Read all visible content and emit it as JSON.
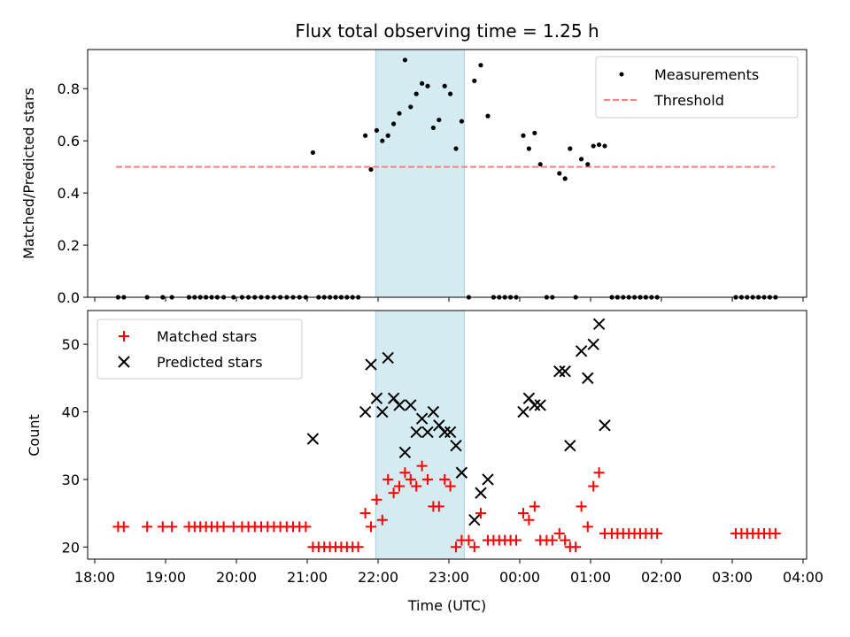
{
  "chart_data": [
    {
      "type": "scatter",
      "title": "Flux total observing time = 1.25 h",
      "xlabel": "",
      "ylabel": "Matched/Predicted stars",
      "ylim": [
        0,
        0.95
      ],
      "yticks": [
        0.0,
        0.2,
        0.4,
        0.6,
        0.8
      ],
      "ytick_labels": [
        "0.0",
        "0.2",
        "0.4",
        "0.6",
        "0.8"
      ],
      "xlim_hours": [
        17.9,
        28.05
      ],
      "highlight_span": {
        "start": "21:58",
        "end": "23:13",
        "color": "#d4ebf1"
      },
      "legend": {
        "position": "top-right"
      },
      "series": [
        {
          "name": "Measurements",
          "kind": "points",
          "color": "#000000",
          "points": [
            [
              18.33,
              0
            ],
            [
              18.41,
              0
            ],
            [
              18.74,
              0
            ],
            [
              18.96,
              0
            ],
            [
              19.09,
              0
            ],
            [
              19.33,
              0
            ],
            [
              19.41,
              0
            ],
            [
              19.49,
              0
            ],
            [
              19.57,
              0
            ],
            [
              19.65,
              0
            ],
            [
              19.73,
              0
            ],
            [
              19.82,
              0
            ],
            [
              19.96,
              0
            ],
            [
              20.08,
              0
            ],
            [
              20.17,
              0
            ],
            [
              20.26,
              0
            ],
            [
              20.35,
              0
            ],
            [
              20.44,
              0
            ],
            [
              20.53,
              0
            ],
            [
              20.62,
              0
            ],
            [
              20.71,
              0
            ],
            [
              20.8,
              0
            ],
            [
              20.89,
              0
            ],
            [
              20.98,
              0
            ],
            [
              21.08,
              0.555
            ],
            [
              21.16,
              0
            ],
            [
              21.24,
              0
            ],
            [
              21.32,
              0
            ],
            [
              21.4,
              0
            ],
            [
              21.48,
              0
            ],
            [
              21.56,
              0
            ],
            [
              21.64,
              0
            ],
            [
              21.72,
              0
            ],
            [
              21.82,
              0.62
            ],
            [
              21.9,
              0.49
            ],
            [
              21.98,
              0.64
            ],
            [
              22.06,
              0.6
            ],
            [
              22.14,
              0.62
            ],
            [
              22.22,
              0.665
            ],
            [
              22.3,
              0.705
            ],
            [
              22.38,
              0.91
            ],
            [
              22.46,
              0.73
            ],
            [
              22.54,
              0.78
            ],
            [
              22.62,
              0.82
            ],
            [
              22.7,
              0.81
            ],
            [
              22.78,
              0.65
            ],
            [
              22.86,
              0.68
            ],
            [
              22.94,
              0.81
            ],
            [
              23.02,
              0.78
            ],
            [
              23.1,
              0.57
            ],
            [
              23.18,
              0.675
            ],
            [
              23.28,
              0
            ],
            [
              23.36,
              0.83
            ],
            [
              23.45,
              0.89
            ],
            [
              23.55,
              0.695
            ],
            [
              23.63,
              0
            ],
            [
              23.71,
              0
            ],
            [
              23.79,
              0
            ],
            [
              23.87,
              0
            ],
            [
              23.95,
              0
            ],
            [
              24.05,
              0.62
            ],
            [
              24.13,
              0.57
            ],
            [
              24.21,
              0.63
            ],
            [
              24.29,
              0.51
            ],
            [
              24.38,
              0
            ],
            [
              24.46,
              0
            ],
            [
              24.56,
              0.475
            ],
            [
              24.64,
              0.455
            ],
            [
              24.71,
              0.57
            ],
            [
              24.79,
              0
            ],
            [
              24.87,
              0.53
            ],
            [
              24.96,
              0.51
            ],
            [
              25.04,
              0.58
            ],
            [
              25.12,
              0.585
            ],
            [
              25.2,
              0.58
            ],
            [
              25.3,
              0
            ],
            [
              25.38,
              0
            ],
            [
              25.46,
              0
            ],
            [
              25.54,
              0
            ],
            [
              25.62,
              0
            ],
            [
              25.7,
              0
            ],
            [
              25.78,
              0
            ],
            [
              25.86,
              0
            ],
            [
              25.94,
              0
            ],
            [
              27.05,
              0
            ],
            [
              27.13,
              0
            ],
            [
              27.21,
              0
            ],
            [
              27.29,
              0
            ],
            [
              27.37,
              0
            ],
            [
              27.45,
              0
            ],
            [
              27.53,
              0
            ],
            [
              27.61,
              0
            ]
          ]
        },
        {
          "name": "Threshold",
          "kind": "dashed-line",
          "color": "#ff7f7f",
          "points": [
            [
              18.3,
              0.5
            ],
            [
              27.6,
              0.5
            ]
          ]
        }
      ]
    },
    {
      "type": "scatter",
      "title": "",
      "xlabel": "Time (UTC)",
      "ylabel": "Count",
      "ylim": [
        18.2,
        55
      ],
      "yticks": [
        20,
        30,
        40,
        50
      ],
      "ytick_labels": [
        "20",
        "30",
        "40",
        "50"
      ],
      "xticks_hours": [
        18,
        19,
        20,
        21,
        22,
        23,
        24,
        25,
        26,
        27,
        28
      ],
      "xtick_labels": [
        "18:00",
        "19:00",
        "20:00",
        "21:00",
        "22:00",
        "23:00",
        "00:00",
        "01:00",
        "02:00",
        "03:00",
        "04:00"
      ],
      "xlim_hours": [
        17.9,
        28.05
      ],
      "highlight_span": {
        "start": "21:58",
        "end": "23:13",
        "color": "#d4ebf1"
      },
      "legend": {
        "position": "top-left"
      },
      "series": [
        {
          "name": "Matched stars",
          "marker": "plus",
          "color": "#ff0000",
          "points": [
            [
              18.33,
              23
            ],
            [
              18.41,
              23
            ],
            [
              18.74,
              23
            ],
            [
              18.96,
              23
            ],
            [
              19.09,
              23
            ],
            [
              19.33,
              23
            ],
            [
              19.41,
              23
            ],
            [
              19.49,
              23
            ],
            [
              19.57,
              23
            ],
            [
              19.65,
              23
            ],
            [
              19.73,
              23
            ],
            [
              19.82,
              23
            ],
            [
              19.96,
              23
            ],
            [
              20.08,
              23
            ],
            [
              20.17,
              23
            ],
            [
              20.26,
              23
            ],
            [
              20.35,
              23
            ],
            [
              20.44,
              23
            ],
            [
              20.53,
              23
            ],
            [
              20.62,
              23
            ],
            [
              20.71,
              23
            ],
            [
              20.8,
              23
            ],
            [
              20.89,
              23
            ],
            [
              20.98,
              23
            ],
            [
              21.08,
              20
            ],
            [
              21.16,
              20
            ],
            [
              21.24,
              20
            ],
            [
              21.32,
              20
            ],
            [
              21.4,
              20
            ],
            [
              21.48,
              20
            ],
            [
              21.56,
              20
            ],
            [
              21.64,
              20
            ],
            [
              21.72,
              20
            ],
            [
              21.82,
              25
            ],
            [
              21.9,
              23
            ],
            [
              21.98,
              27
            ],
            [
              22.06,
              24
            ],
            [
              22.14,
              30
            ],
            [
              22.22,
              28
            ],
            [
              22.3,
              29
            ],
            [
              22.38,
              31
            ],
            [
              22.46,
              30
            ],
            [
              22.54,
              29
            ],
            [
              22.62,
              32
            ],
            [
              22.7,
              30
            ],
            [
              22.78,
              26
            ],
            [
              22.86,
              26
            ],
            [
              22.94,
              30
            ],
            [
              23.02,
              29
            ],
            [
              23.1,
              20
            ],
            [
              23.18,
              21
            ],
            [
              23.28,
              21
            ],
            [
              23.36,
              20
            ],
            [
              23.45,
              25
            ],
            [
              23.55,
              21
            ],
            [
              23.63,
              21
            ],
            [
              23.71,
              21
            ],
            [
              23.79,
              21
            ],
            [
              23.87,
              21
            ],
            [
              23.95,
              21
            ],
            [
              24.05,
              25
            ],
            [
              24.13,
              24
            ],
            [
              24.21,
              26
            ],
            [
              24.29,
              21
            ],
            [
              24.38,
              21
            ],
            [
              24.46,
              21
            ],
            [
              24.56,
              22
            ],
            [
              24.64,
              21
            ],
            [
              24.71,
              20
            ],
            [
              24.79,
              20
            ],
            [
              24.87,
              26
            ],
            [
              24.96,
              23
            ],
            [
              25.04,
              29
            ],
            [
              25.12,
              31
            ],
            [
              25.2,
              22
            ],
            [
              25.3,
              22
            ],
            [
              25.38,
              22
            ],
            [
              25.46,
              22
            ],
            [
              25.54,
              22
            ],
            [
              25.62,
              22
            ],
            [
              25.7,
              22
            ],
            [
              25.78,
              22
            ],
            [
              25.86,
              22
            ],
            [
              25.94,
              22
            ],
            [
              27.05,
              22
            ],
            [
              27.13,
              22
            ],
            [
              27.21,
              22
            ],
            [
              27.29,
              22
            ],
            [
              27.37,
              22
            ],
            [
              27.45,
              22
            ],
            [
              27.53,
              22
            ],
            [
              27.61,
              22
            ]
          ]
        },
        {
          "name": "Predicted stars",
          "marker": "cross",
          "color": "#000000",
          "points": [
            [
              21.08,
              36
            ],
            [
              21.82,
              40
            ],
            [
              21.9,
              47
            ],
            [
              21.98,
              42
            ],
            [
              22.06,
              40
            ],
            [
              22.14,
              48
            ],
            [
              22.22,
              42
            ],
            [
              22.3,
              41
            ],
            [
              22.38,
              34
            ],
            [
              22.46,
              41
            ],
            [
              22.54,
              37
            ],
            [
              22.62,
              39
            ],
            [
              22.7,
              37
            ],
            [
              22.78,
              40
            ],
            [
              22.86,
              38
            ],
            [
              22.94,
              37
            ],
            [
              23.02,
              37
            ],
            [
              23.1,
              35
            ],
            [
              23.18,
              31
            ],
            [
              23.36,
              24
            ],
            [
              23.45,
              28
            ],
            [
              23.55,
              30
            ],
            [
              24.05,
              40
            ],
            [
              24.13,
              42
            ],
            [
              24.21,
              41
            ],
            [
              24.29,
              41
            ],
            [
              24.56,
              46
            ],
            [
              24.64,
              46
            ],
            [
              24.71,
              35
            ],
            [
              24.87,
              49
            ],
            [
              24.96,
              45
            ],
            [
              25.04,
              50
            ],
            [
              25.12,
              53
            ],
            [
              25.2,
              38
            ]
          ]
        }
      ]
    }
  ]
}
